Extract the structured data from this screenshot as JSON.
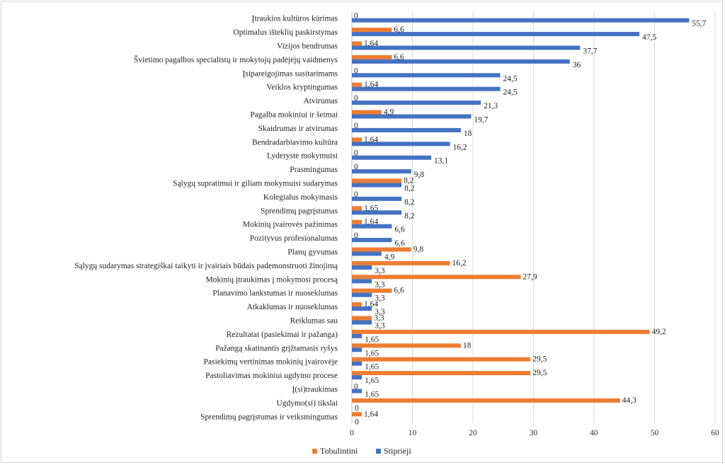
{
  "chart_data": {
    "type": "bar",
    "orientation": "horizontal",
    "categories": [
      "Įtraukios kultūros kūrimas",
      "Optimalus išteklių paskirstymas",
      "Vizijos bendrumas",
      "Švietimo pagalbos specialistų ir mokytojų padėjėjų vaidmenys",
      "Įsipareigojimas susitarimams",
      "Veiklos kryptingumas",
      "Atvirumas",
      "Pagalba mokiniui ir šeimai",
      "Skaidrumas ir atvirumas",
      "Bendradarbiavimo kultūra",
      "Lyderystė mokymuisi",
      "Prasmingumas",
      "Sąlygų supratimui ir giliam mokymuisi sudarymas",
      "Kolegialus mokymasis",
      "Sprendimų pagrįstumas",
      "Mokinių įvairovės pažinimas",
      "Pozityvus profesionalumas",
      "Planų gyvumas",
      "Sąlygų sudarymas strategiškai taikyti ir įvairiais būdais pademonstruoti žinojimą",
      "Mokinių įtraukimas į mokymosi procesą",
      "Planavimo lankstumas ir nuoseklumas",
      "Atkaklumas ir nuoseklumas",
      "Reiklumas sau",
      "Rezultatai (pasiekimai ir pažanga)",
      "Pažangą skatinantis grįžtamasis ryšys",
      "Pasiekimų vertinimas mokinių įvairovėje",
      "Pastoliavimas mokiniui ugdymo procese",
      "Į(si)traukimas",
      "Ugdymo(si) tikslai",
      "Sprendimų pagrįstumas ir veiksmingumas"
    ],
    "series": [
      {
        "name": "Tobulintini",
        "color": "#ED7D31",
        "values": [
          0,
          6.6,
          1.64,
          6.6,
          0,
          1.64,
          0,
          4.9,
          0,
          1.64,
          0,
          0,
          8.2,
          0,
          1.65,
          1.64,
          0,
          9.8,
          16.2,
          27.9,
          6.6,
          1.64,
          3.3,
          49.2,
          18,
          29.5,
          29.5,
          0,
          44.3,
          1.64
        ],
        "labels": [
          "0",
          "6,6",
          "1,64",
          "6,6",
          "0",
          "1,64",
          "0",
          "4,9",
          "0",
          "1,64",
          "0",
          "0",
          "8,2",
          "0",
          "1,65",
          "1,64",
          "0",
          "9,8",
          "16,2",
          "27,9",
          "6,6",
          "1,64",
          "3,3",
          "49,2",
          "18",
          "29,5",
          "29,5",
          "0",
          "44,3",
          "1,64"
        ]
      },
      {
        "name": "Stiprieji",
        "color": "#4472C4",
        "values": [
          55.7,
          47.5,
          37.7,
          36,
          24.5,
          24.5,
          21.3,
          19.7,
          18,
          16.2,
          13.1,
          9.8,
          8.2,
          8.2,
          8.2,
          6.6,
          6.6,
          4.9,
          3.3,
          3.3,
          3.3,
          3.3,
          3.3,
          1.65,
          1.65,
          1.65,
          1.65,
          1.65,
          0,
          0
        ],
        "labels": [
          "55,7",
          "47,5",
          "37,7",
          "36",
          "24,5",
          "24,5",
          "21,3",
          "19,7",
          "18",
          "16,2",
          "13,1",
          "9,8",
          "8,2",
          "8,2",
          "8,2",
          "6,6",
          "6,6",
          "4,9",
          "3,3",
          "3,3",
          "3,3",
          "3,3",
          "3,3",
          "1,65",
          "1,65",
          "1,65",
          "1,65",
          "1,65",
          "0",
          "0"
        ]
      }
    ],
    "xlim": [
      0,
      60
    ],
    "xticks": [
      "0",
      "10",
      "20",
      "30",
      "40",
      "50",
      "60"
    ],
    "grid": true,
    "legend_position": "bottom"
  }
}
